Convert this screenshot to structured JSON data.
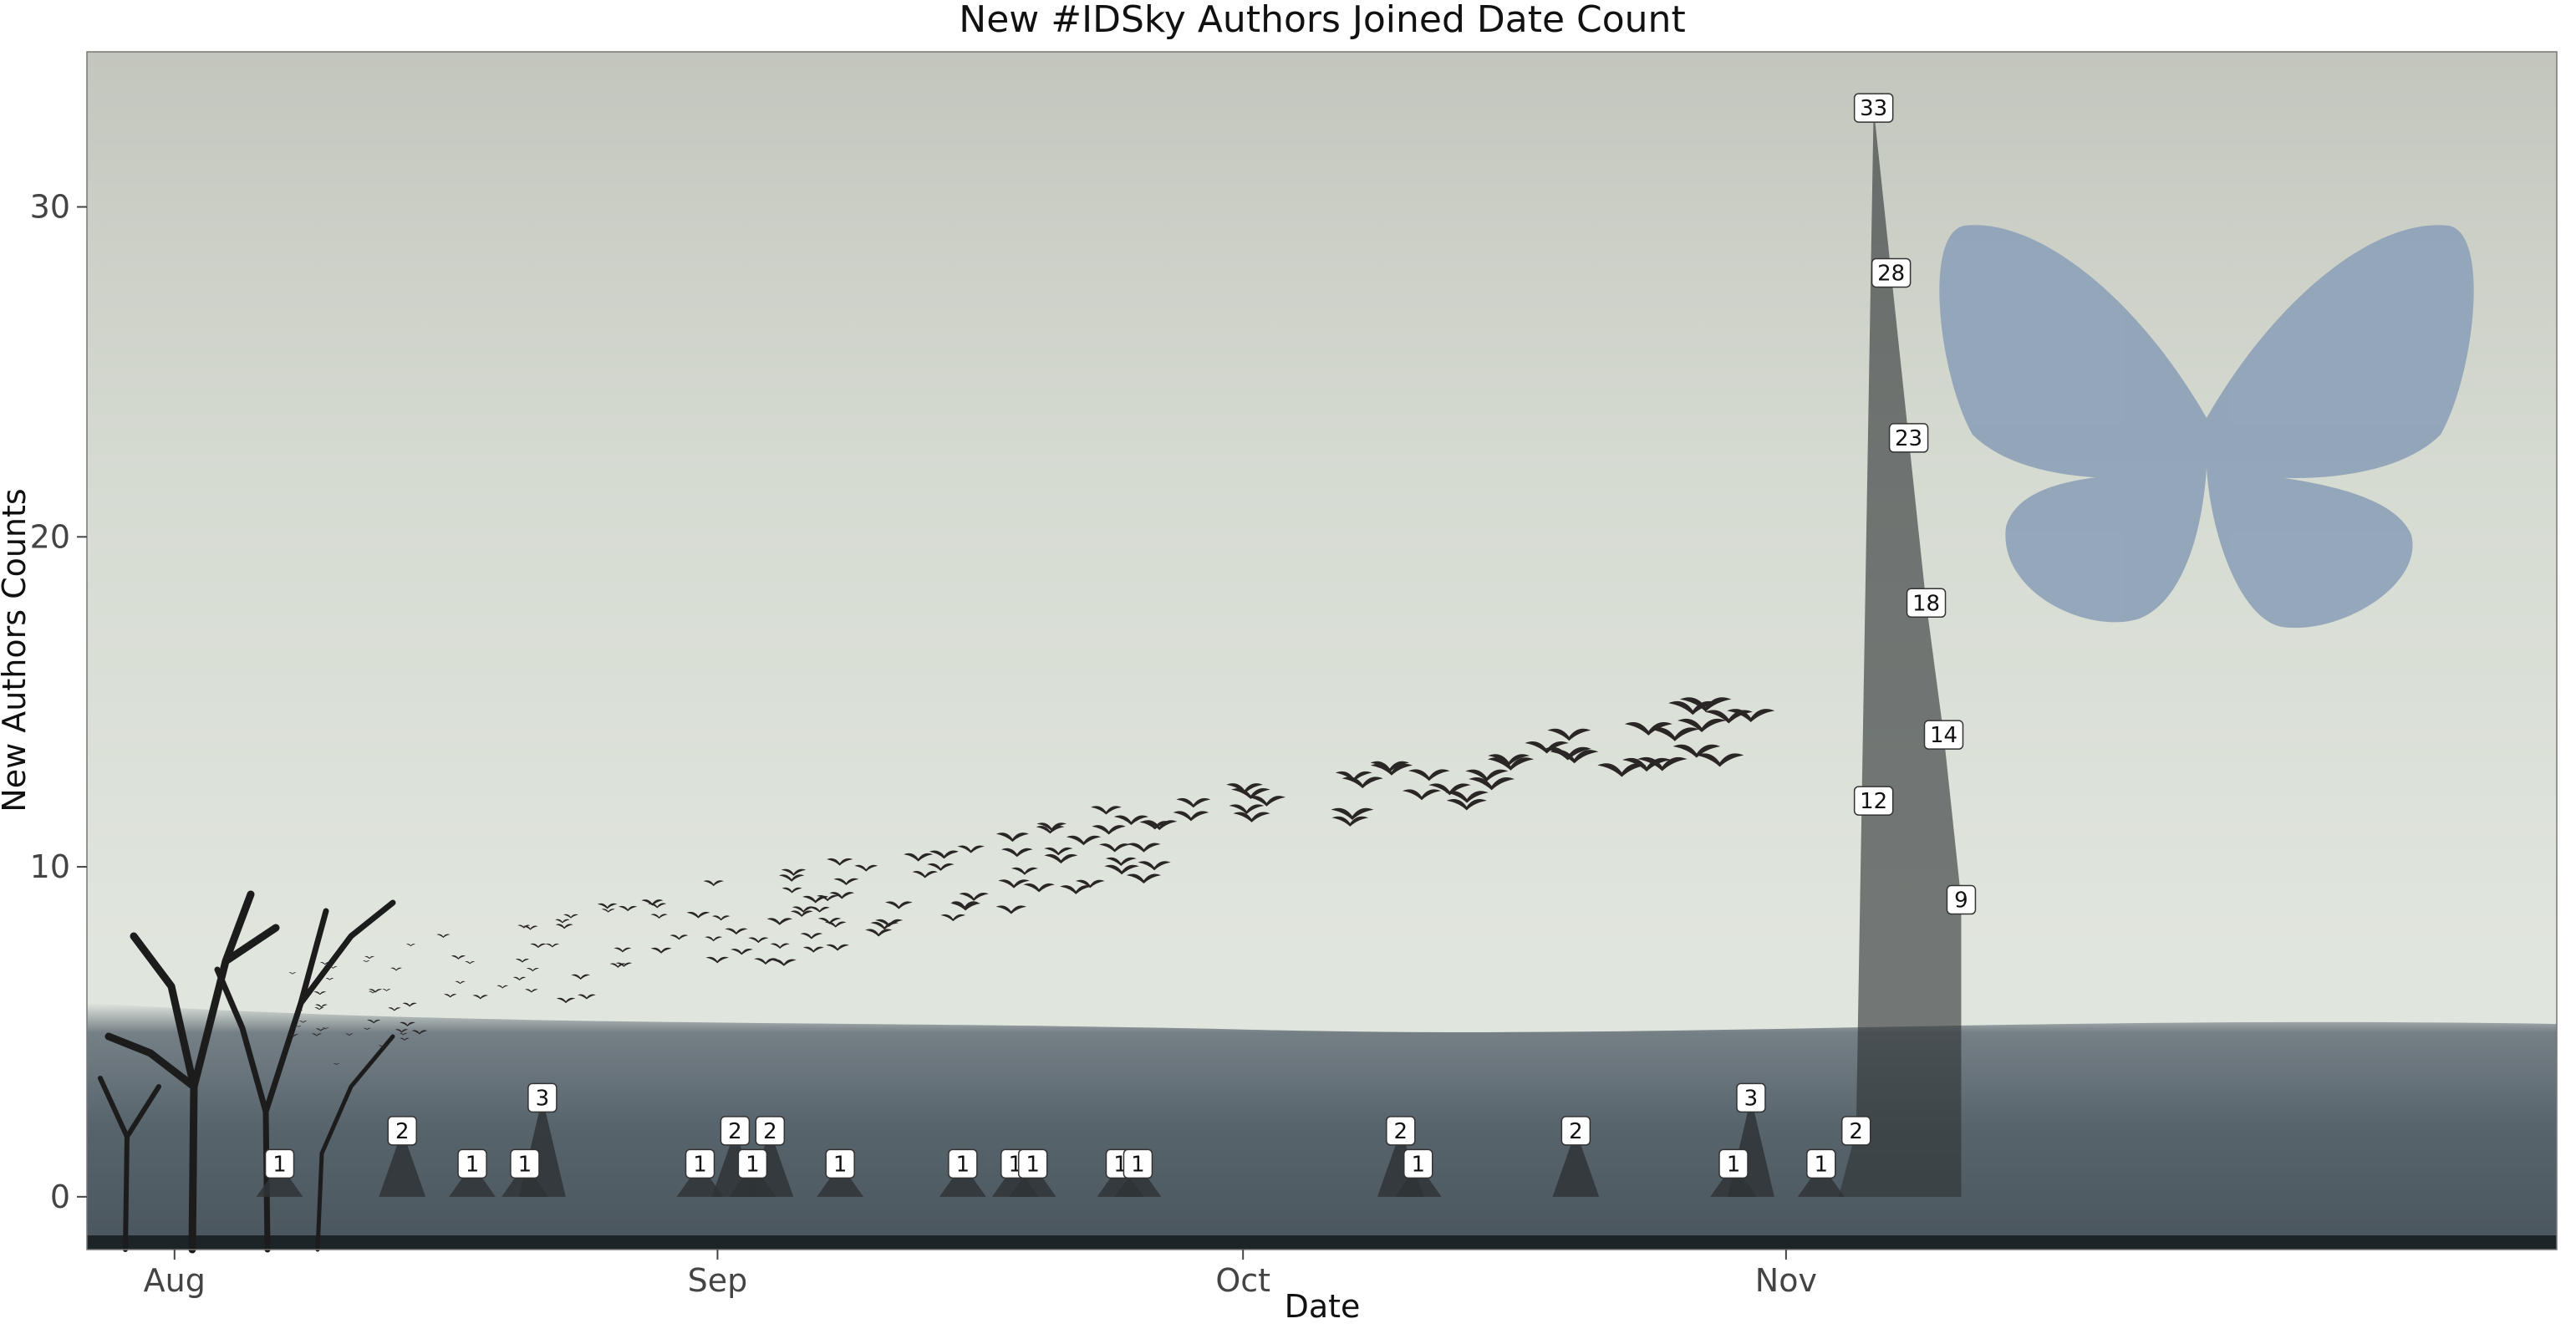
{
  "chart_data": {
    "type": "area",
    "title": "New #IDSky Authors Joined Date Count",
    "xlabel": "Date",
    "ylabel": "New Authors Counts",
    "x_ticks": [
      {
        "label": "Aug",
        "date": "2024-08-01"
      },
      {
        "label": "Sep",
        "date": "2024-09-01"
      },
      {
        "label": "Oct",
        "date": "2024-10-01"
      },
      {
        "label": "Nov",
        "date": "2024-11-01"
      }
    ],
    "y_ticks": [
      0,
      10,
      20,
      30
    ],
    "xlim": [
      "2024-07-27",
      "2024-12-15"
    ],
    "ylim": [
      -1.6,
      34.7
    ],
    "grid": false,
    "legend": "none",
    "colors": {
      "fill": "#2f3436",
      "label_bg": "#ffffff",
      "label_border": "#333333",
      "butterfly": "#8ea2b8"
    },
    "points": [
      {
        "date": "2024-08-07",
        "count": 1
      },
      {
        "date": "2024-08-14",
        "count": 2
      },
      {
        "date": "2024-08-18",
        "count": 1
      },
      {
        "date": "2024-08-21",
        "count": 1
      },
      {
        "date": "2024-08-22",
        "count": 3
      },
      {
        "date": "2024-08-31",
        "count": 1
      },
      {
        "date": "2024-09-02",
        "count": 2
      },
      {
        "date": "2024-09-03",
        "count": 1
      },
      {
        "date": "2024-09-04",
        "count": 2
      },
      {
        "date": "2024-09-08",
        "count": 1
      },
      {
        "date": "2024-09-15",
        "count": 1
      },
      {
        "date": "2024-09-18",
        "count": 1
      },
      {
        "date": "2024-09-19",
        "count": 1
      },
      {
        "date": "2024-09-24",
        "count": 1
      },
      {
        "date": "2024-09-25",
        "count": 1
      },
      {
        "date": "2024-10-10",
        "count": 2
      },
      {
        "date": "2024-10-11",
        "count": 1
      },
      {
        "date": "2024-10-20",
        "count": 2
      },
      {
        "date": "2024-10-29",
        "count": 1
      },
      {
        "date": "2024-10-30",
        "count": 3
      },
      {
        "date": "2024-11-03",
        "count": 1
      },
      {
        "date": "2024-11-05",
        "count": 2
      },
      {
        "date": "2024-11-06",
        "count": 33
      },
      {
        "date": "2024-11-07",
        "count": 28
      },
      {
        "date": "2024-11-08",
        "count": 23
      },
      {
        "date": "2024-11-09",
        "count": 18
      },
      {
        "date": "2024-11-10",
        "count": 14
      },
      {
        "date": "2024-11-11",
        "count": 9
      },
      {
        "date": "2024-11-06",
        "count": 12
      }
    ]
  }
}
